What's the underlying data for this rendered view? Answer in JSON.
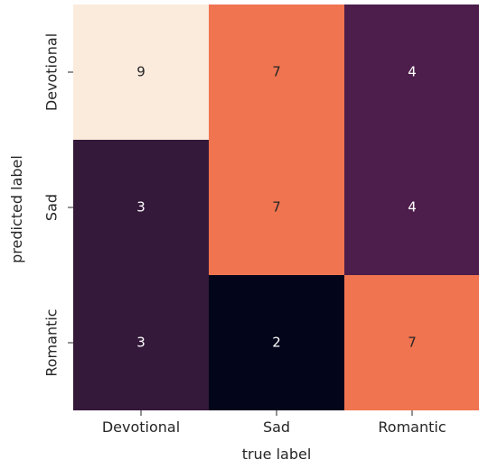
{
  "chart_data": {
    "type": "heatmap",
    "title": "",
    "xlabel": "true label",
    "ylabel": "predicted label",
    "x_categories": [
      "Devotional",
      "Sad",
      "Romantic"
    ],
    "y_categories": [
      "Devotional",
      "Sad",
      "Romantic"
    ],
    "values": [
      [
        9,
        7,
        4
      ],
      [
        3,
        7,
        4
      ],
      [
        3,
        2,
        7
      ]
    ],
    "vmin": 2,
    "vmax": 9,
    "colormap": "rocket",
    "colorbar": false,
    "grid": false,
    "legend": "none"
  }
}
